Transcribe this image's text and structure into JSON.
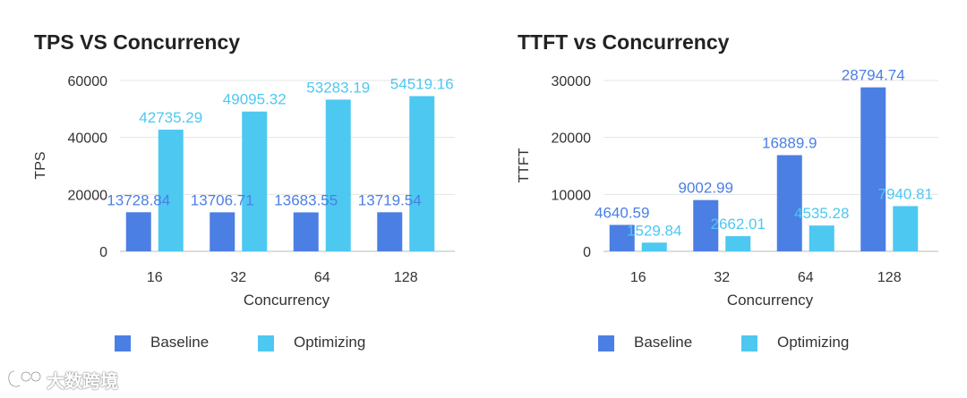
{
  "chart_data": [
    {
      "type": "bar",
      "title": "TPS VS Concurrency",
      "xlabel": "Concurrency",
      "ylabel": "TPS",
      "categories": [
        "16",
        "32",
        "64",
        "128"
      ],
      "ylim": [
        0,
        60000
      ],
      "yticks": [
        0,
        20000,
        40000,
        60000
      ],
      "grid": true,
      "legend_position": "bottom-left",
      "series": [
        {
          "name": "Baseline",
          "color": "#4b7fe3",
          "values": [
            13728.84,
            13706.71,
            13683.55,
            13719.54
          ]
        },
        {
          "name": "Optimizing",
          "color": "#4dc8f1",
          "values": [
            42735.29,
            49095.32,
            53283.19,
            54519.16
          ]
        }
      ]
    },
    {
      "type": "bar",
      "title": "TTFT vs Concurrency",
      "xlabel": "Concurrency",
      "ylabel": "TTFT",
      "categories": [
        "16",
        "32",
        "64",
        "128"
      ],
      "ylim": [
        0,
        30000
      ],
      "yticks": [
        0,
        10000,
        20000,
        30000
      ],
      "grid": true,
      "legend_position": "bottom-left",
      "series": [
        {
          "name": "Baseline",
          "color": "#4b7fe3",
          "values": [
            4640.59,
            9002.99,
            16889.9,
            28794.74
          ]
        },
        {
          "name": "Optimizing",
          "color": "#4dc8f1",
          "values": [
            1529.84,
            2662.01,
            4535.28,
            7940.81
          ]
        }
      ]
    }
  ],
  "watermark": {
    "text": "大数跨境",
    "icon": "logo-icon"
  }
}
